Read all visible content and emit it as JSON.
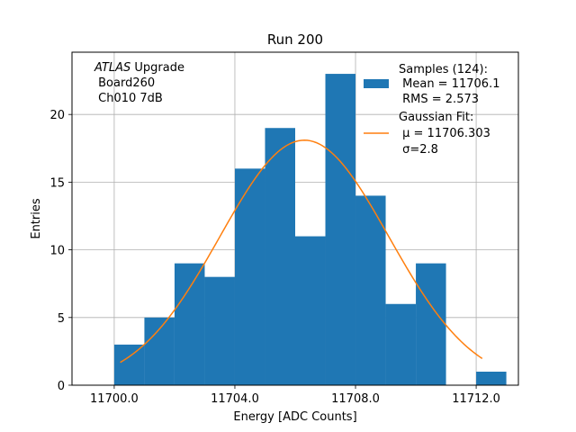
{
  "chart_data": {
    "type": "bar",
    "title": "Run 200",
    "xlabel": "Energy [ADC Counts]",
    "ylabel": "Entries",
    "xlim": [
      11698.6,
      11713.4
    ],
    "ylim": [
      0,
      24.6
    ],
    "grid": true,
    "bins": [
      {
        "left": 11700,
        "right": 11701,
        "count": 3
      },
      {
        "left": 11701,
        "right": 11702,
        "count": 5
      },
      {
        "left": 11702,
        "right": 11703,
        "count": 9
      },
      {
        "left": 11703,
        "right": 11704,
        "count": 8
      },
      {
        "left": 11704,
        "right": 11705,
        "count": 16
      },
      {
        "left": 11705,
        "right": 11706,
        "count": 19
      },
      {
        "left": 11706,
        "right": 11707,
        "count": 11
      },
      {
        "left": 11707,
        "right": 11708,
        "count": 23
      },
      {
        "left": 11708,
        "right": 11709,
        "count": 14
      },
      {
        "left": 11709,
        "right": 11710,
        "count": 6
      },
      {
        "left": 11710,
        "right": 11711,
        "count": 9
      },
      {
        "left": 11711,
        "right": 11712,
        "count": 0
      },
      {
        "left": 11712,
        "right": 11713,
        "count": 1
      }
    ],
    "fit": {
      "mu": 11706.303,
      "sigma": 2.8,
      "amplitude": 18.1,
      "x_start": 11700.2,
      "x_end": 11712.2
    },
    "x_ticks": [
      {
        "value": 11700,
        "label": "11700.0"
      },
      {
        "value": 11704,
        "label": "11704.0"
      },
      {
        "value": 11708,
        "label": "11708.0"
      },
      {
        "value": 11712,
        "label": "11712.0"
      }
    ],
    "y_ticks": [
      {
        "value": 0,
        "label": "0"
      },
      {
        "value": 5,
        "label": "5"
      },
      {
        "value": 10,
        "label": "10"
      },
      {
        "value": 15,
        "label": "15"
      },
      {
        "value": 20,
        "label": "20"
      }
    ],
    "colors": {
      "histogram": "#1f77b4",
      "fit": "#ff7f0e",
      "grid": "#b0b0b0"
    },
    "legend": {
      "position": "top-right",
      "samples": {
        "line1": "Samples (124):",
        "line2": " Mean = 11706.1",
        "line3": " RMS = 2.573"
      },
      "fit": {
        "line1": "Gaussian Fit:",
        "line2": " μ = 11706.303",
        "line3": " σ=2.8"
      }
    },
    "annotation": {
      "position": "top-left",
      "experiment": "ATLAS",
      "suffix": " Upgrade",
      "line2": " Board260",
      "line3": " Ch010 7dB"
    }
  }
}
